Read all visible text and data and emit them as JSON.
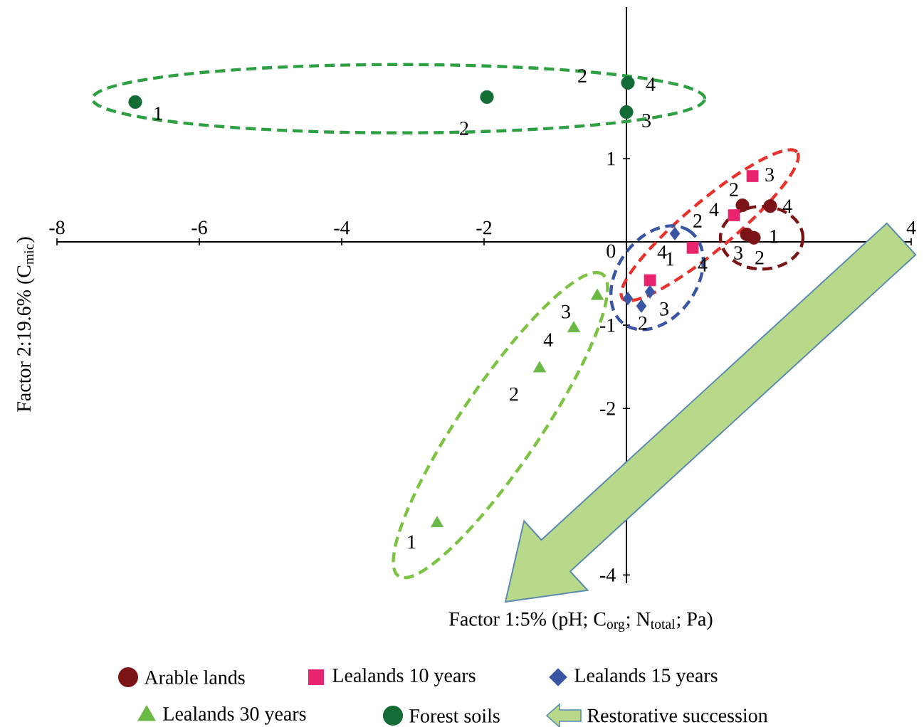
{
  "chart_data": {
    "type": "scatter",
    "xlabel": "Factor 1:5% (pH; C$_{org}$; N$_{total}$; Pa)",
    "ylabel": "Factor 2:19.6% (C$_{mic}$)",
    "xlim": [
      -8,
      4
    ],
    "ylim": [
      -4.1,
      2.82
    ],
    "xticks": [
      -8,
      -6,
      -4,
      -2,
      4
    ],
    "yticks": [
      -4,
      -2,
      -1,
      0,
      1
    ],
    "legend": "bottom",
    "series": [
      {
        "name": "Arable lands",
        "color": "#7b1416",
        "marker": "circle",
        "x": [
          1.63,
          2.02,
          1.69,
          1.79
        ],
        "values": [
          0.44,
          0.43,
          0.09,
          0.05
        ]
      },
      {
        "name": "Lealands 10 years",
        "color": "#e8246e",
        "marker": "square",
        "x": [
          1.77,
          1.51,
          0.93,
          0.33
        ],
        "values": [
          0.79,
          0.32,
          -0.07,
          -0.46
        ]
      },
      {
        "name": "Lealands 15 years",
        "color": "#3a55a4",
        "marker": "diamond",
        "x": [
          0.68,
          0.02,
          0.21,
          0.33
        ],
        "values": [
          0.1,
          -0.68,
          -0.77,
          -0.6
        ]
      },
      {
        "name": "Lealands 30 years",
        "color": "#6ab945",
        "marker": "triangle",
        "x": [
          -0.41,
          -0.74,
          -1.22,
          -2.66
        ],
        "values": [
          -0.65,
          -1.04,
          -1.52,
          -3.38
        ]
      },
      {
        "name": "Forest soils",
        "color": "#136b35",
        "marker": "circle",
        "x": [
          -6.9,
          -1.96,
          0.02,
          0
        ],
        "values": [
          1.68,
          1.74,
          1.91,
          1.56
        ]
      }
    ],
    "annotations": [
      "Restorative succession",
      {
        "text": "1",
        "x": -6.9,
        "y": 1.68
      },
      {
        "text": "2",
        "x": -1.96,
        "y": 1.74
      },
      {
        "text": "2",
        "x": 0.02,
        "y": 1.91
      },
      {
        "text": "4",
        "x": 0.02,
        "y": 1.91
      },
      {
        "text": "3",
        "x": 0,
        "y": 1.56
      },
      {
        "text": "3",
        "x": -0.41,
        "y": -0.65
      },
      {
        "text": "4",
        "x": -0.74,
        "y": -1.04
      },
      {
        "text": "2",
        "x": -1.22,
        "y": -1.52
      },
      {
        "text": "1",
        "x": -2.66,
        "y": -3.38
      },
      {
        "text": "3",
        "x": 1.77,
        "y": 0.79
      },
      {
        "text": "2",
        "x": 1.63,
        "y": 0.44
      },
      {
        "text": "4",
        "x": 1.51,
        "y": 0.32
      },
      {
        "text": "4",
        "x": 2.02,
        "y": 0.43
      },
      {
        "text": "1",
        "x": 1.79,
        "y": 0.05
      },
      {
        "text": "3",
        "x": 1.69,
        "y": 0.09
      },
      {
        "text": "2",
        "x": 1.79,
        "y": 0.05
      },
      {
        "text": "2",
        "x": 0.68,
        "y": 0.1
      },
      {
        "text": "4",
        "x": 0.93,
        "y": -0.07
      },
      {
        "text": "4",
        "x": 0.68,
        "y": 0.1
      },
      {
        "text": "1",
        "x": 0.33,
        "y": -0.46
      },
      {
        "text": "3",
        "x": 0.33,
        "y": -0.6
      },
      {
        "text": "2",
        "x": 0.21,
        "y": -0.77
      }
    ]
  }
}
